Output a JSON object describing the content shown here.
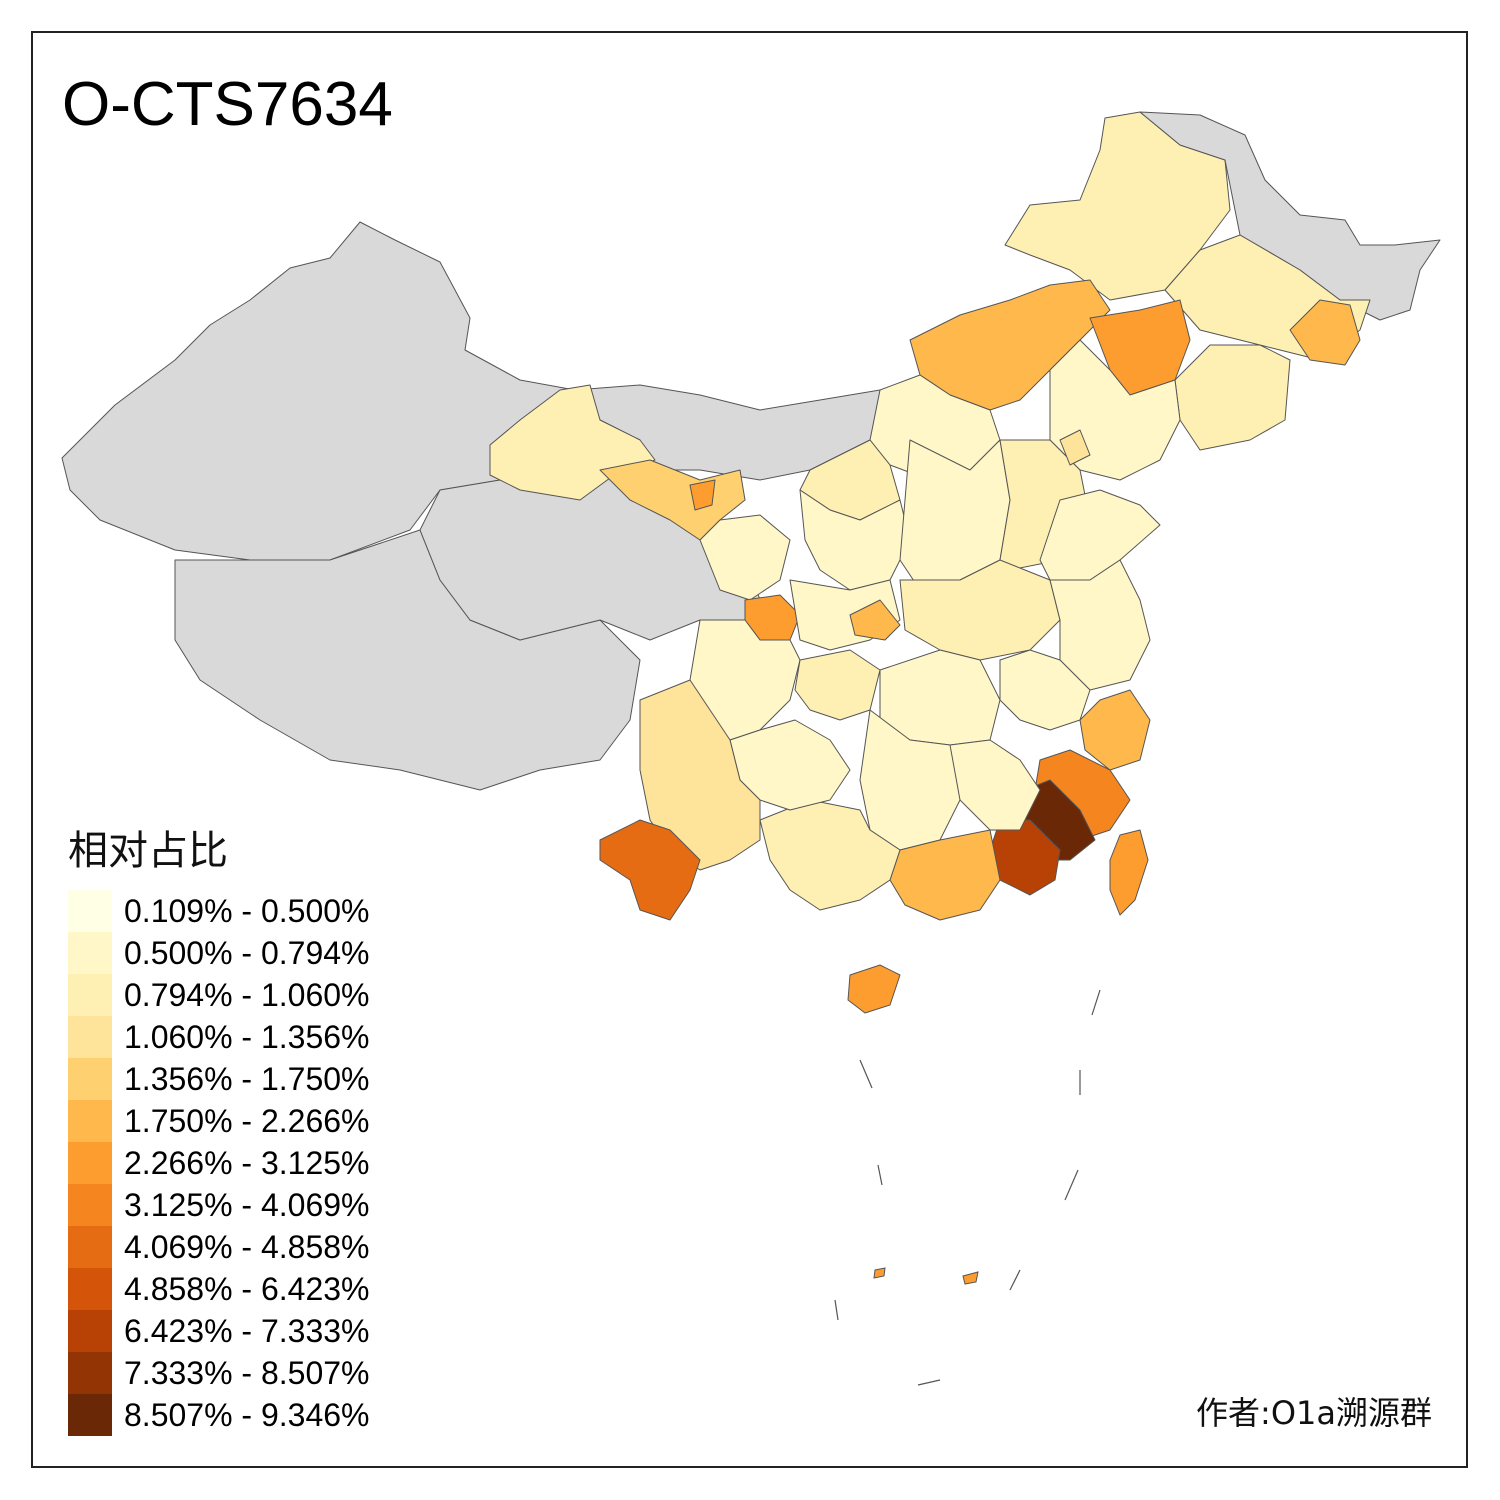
{
  "title": "O-CTS7634",
  "legend": {
    "title": "相对占比",
    "items": [
      {
        "label": "0.109% - 0.500%",
        "color": "#ffffe5"
      },
      {
        "label": "0.500% - 0.794%",
        "color": "#fff7c8"
      },
      {
        "label": "0.794% - 1.060%",
        "color": "#feefb3"
      },
      {
        "label": "1.060% - 1.356%",
        "color": "#fee39a"
      },
      {
        "label": "1.356% - 1.750%",
        "color": "#fed070"
      },
      {
        "label": "1.750% - 2.266%",
        "color": "#feb84c"
      },
      {
        "label": "2.266% - 3.125%",
        "color": "#fe9d2f"
      },
      {
        "label": "3.125% - 4.069%",
        "color": "#f5851f"
      },
      {
        "label": "4.069% - 4.858%",
        "color": "#e66c14"
      },
      {
        "label": "4.858% - 6.423%",
        "color": "#d4540a"
      },
      {
        "label": "6.423% - 7.333%",
        "color": "#b84206"
      },
      {
        "label": "7.333% - 8.507%",
        "color": "#933405"
      },
      {
        "label": "8.507% - 9.346%",
        "color": "#6b2806"
      }
    ]
  },
  "no_data_color": "#d9d9d9",
  "credit": "作者:O1a溯源群"
}
